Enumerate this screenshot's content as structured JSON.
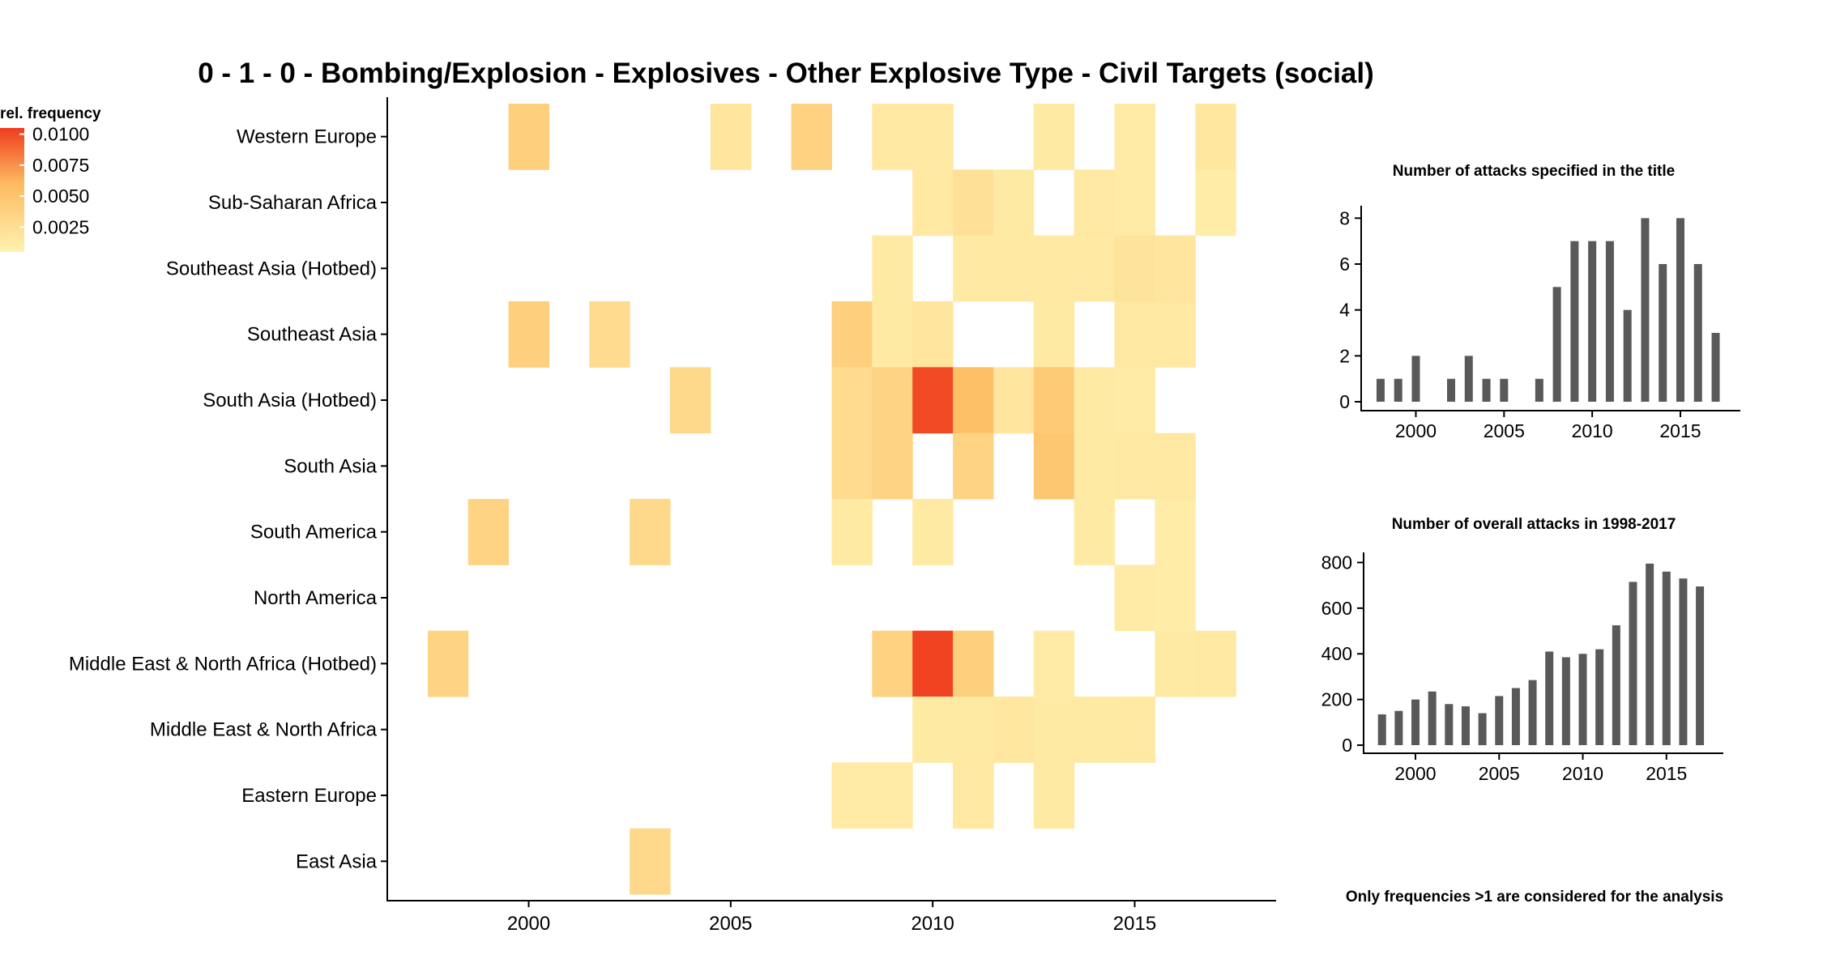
{
  "chart_data": [
    {
      "type": "heatmap",
      "title": "0 - 1 - 0 - Bombing/Explosion - Explosives - Other Explosive Type - Civil Targets (social)",
      "x_ticks": [
        "2000",
        "2005",
        "2010",
        "2015"
      ],
      "xlim": [
        1996.5,
        2018.5
      ],
      "regions": [
        "Western Europe",
        "Sub-Saharan Africa",
        "Southeast Asia (Hotbed)",
        "Southeast Asia",
        "South Asia (Hotbed)",
        "South Asia",
        "South America",
        "North America",
        "Middle East & North Africa (Hotbed)",
        "Middle East & North Africa",
        "Eastern Europe",
        "East Asia"
      ],
      "legend": {
        "title": "rel. frequency",
        "ticks": [
          "0.0100",
          "0.0075",
          "0.0050",
          "0.0025"
        ],
        "min": 0.0005,
        "max": 0.0105
      },
      "colors": {
        "low": "#fff2b0",
        "mid": "#fdbb60",
        "high": "#f03c1e"
      },
      "cells": [
        {
          "region": "Western Europe",
          "year": 2000,
          "value": 0.004
        },
        {
          "region": "Western Europe",
          "year": 2005,
          "value": 0.0018
        },
        {
          "region": "Western Europe",
          "year": 2007,
          "value": 0.0038
        },
        {
          "region": "Western Europe",
          "year": 2009,
          "value": 0.0015
        },
        {
          "region": "Western Europe",
          "year": 2010,
          "value": 0.0015
        },
        {
          "region": "Western Europe",
          "year": 2013,
          "value": 0.0013
        },
        {
          "region": "Western Europe",
          "year": 2015,
          "value": 0.0012
        },
        {
          "region": "Western Europe",
          "year": 2017,
          "value": 0.0016
        },
        {
          "region": "Sub-Saharan Africa",
          "year": 2010,
          "value": 0.0015
        },
        {
          "region": "Sub-Saharan Africa",
          "year": 2011,
          "value": 0.0022
        },
        {
          "region": "Sub-Saharan Africa",
          "year": 2012,
          "value": 0.0013
        },
        {
          "region": "Sub-Saharan Africa",
          "year": 2014,
          "value": 0.0015
        },
        {
          "region": "Sub-Saharan Africa",
          "year": 2015,
          "value": 0.0012
        },
        {
          "region": "Sub-Saharan Africa",
          "year": 2017,
          "value": 0.0011
        },
        {
          "region": "Southeast Asia (Hotbed)",
          "year": 2009,
          "value": 0.0013
        },
        {
          "region": "Southeast Asia (Hotbed)",
          "year": 2011,
          "value": 0.0014
        },
        {
          "region": "Southeast Asia (Hotbed)",
          "year": 2012,
          "value": 0.0014
        },
        {
          "region": "Southeast Asia (Hotbed)",
          "year": 2013,
          "value": 0.0014
        },
        {
          "region": "Southeast Asia (Hotbed)",
          "year": 2014,
          "value": 0.0014
        },
        {
          "region": "Southeast Asia (Hotbed)",
          "year": 2015,
          "value": 0.002
        },
        {
          "region": "Southeast Asia (Hotbed)",
          "year": 2016,
          "value": 0.0018
        },
        {
          "region": "Southeast Asia",
          "year": 2000,
          "value": 0.004
        },
        {
          "region": "Southeast Asia",
          "year": 2002,
          "value": 0.0028
        },
        {
          "region": "Southeast Asia",
          "year": 2008,
          "value": 0.004
        },
        {
          "region": "Southeast Asia",
          "year": 2009,
          "value": 0.0013
        },
        {
          "region": "Southeast Asia",
          "year": 2010,
          "value": 0.0018
        },
        {
          "region": "Southeast Asia",
          "year": 2013,
          "value": 0.0013
        },
        {
          "region": "Southeast Asia",
          "year": 2015,
          "value": 0.0015
        },
        {
          "region": "Southeast Asia",
          "year": 2016,
          "value": 0.0015
        },
        {
          "region": "South Asia (Hotbed)",
          "year": 2004,
          "value": 0.003
        },
        {
          "region": "South Asia (Hotbed)",
          "year": 2008,
          "value": 0.0028
        },
        {
          "region": "South Asia (Hotbed)",
          "year": 2009,
          "value": 0.0035
        },
        {
          "region": "South Asia (Hotbed)",
          "year": 2010,
          "value": 0.01
        },
        {
          "region": "South Asia (Hotbed)",
          "year": 2011,
          "value": 0.0055
        },
        {
          "region": "South Asia (Hotbed)",
          "year": 2012,
          "value": 0.0018
        },
        {
          "region": "South Asia (Hotbed)",
          "year": 2013,
          "value": 0.0045
        },
        {
          "region": "South Asia (Hotbed)",
          "year": 2014,
          "value": 0.0013
        },
        {
          "region": "South Asia (Hotbed)",
          "year": 2015,
          "value": 0.0012
        },
        {
          "region": "South Asia",
          "year": 2008,
          "value": 0.0028
        },
        {
          "region": "South Asia",
          "year": 2009,
          "value": 0.0035
        },
        {
          "region": "South Asia",
          "year": 2011,
          "value": 0.0035
        },
        {
          "region": "South Asia",
          "year": 2013,
          "value": 0.0048
        },
        {
          "region": "South Asia",
          "year": 2014,
          "value": 0.0013
        },
        {
          "region": "South Asia",
          "year": 2015,
          "value": 0.0015
        },
        {
          "region": "South Asia",
          "year": 2016,
          "value": 0.0015
        },
        {
          "region": "South America",
          "year": 1999,
          "value": 0.0035
        },
        {
          "region": "South America",
          "year": 2003,
          "value": 0.003
        },
        {
          "region": "South America",
          "year": 2008,
          "value": 0.0013
        },
        {
          "region": "South America",
          "year": 2010,
          "value": 0.0013
        },
        {
          "region": "South America",
          "year": 2014,
          "value": 0.0013
        },
        {
          "region": "South America",
          "year": 2016,
          "value": 0.0011
        },
        {
          "region": "North America",
          "year": 2015,
          "value": 0.0012
        },
        {
          "region": "North America",
          "year": 2016,
          "value": 0.0011
        },
        {
          "region": "Middle East & North Africa (Hotbed)",
          "year": 1998,
          "value": 0.0035
        },
        {
          "region": "Middle East & North Africa (Hotbed)",
          "year": 2009,
          "value": 0.0038
        },
        {
          "region": "Middle East & North Africa (Hotbed)",
          "year": 2010,
          "value": 0.0103
        },
        {
          "region": "Middle East & North Africa (Hotbed)",
          "year": 2011,
          "value": 0.004
        },
        {
          "region": "Middle East & North Africa (Hotbed)",
          "year": 2013,
          "value": 0.0012
        },
        {
          "region": "Middle East & North Africa (Hotbed)",
          "year": 2016,
          "value": 0.0013
        },
        {
          "region": "Middle East & North Africa (Hotbed)",
          "year": 2017,
          "value": 0.0015
        },
        {
          "region": "Middle East & North Africa",
          "year": 2010,
          "value": 0.0013
        },
        {
          "region": "Middle East & North Africa",
          "year": 2011,
          "value": 0.0013
        },
        {
          "region": "Middle East & North Africa",
          "year": 2012,
          "value": 0.0016
        },
        {
          "region": "Middle East & North Africa",
          "year": 2013,
          "value": 0.0013
        },
        {
          "region": "Middle East & North Africa",
          "year": 2014,
          "value": 0.0013
        },
        {
          "region": "Middle East & North Africa",
          "year": 2015,
          "value": 0.0014
        },
        {
          "region": "Eastern Europe",
          "year": 2008,
          "value": 0.0012
        },
        {
          "region": "Eastern Europe",
          "year": 2009,
          "value": 0.0012
        },
        {
          "region": "Eastern Europe",
          "year": 2011,
          "value": 0.0015
        },
        {
          "region": "Eastern Europe",
          "year": 2013,
          "value": 0.0013
        },
        {
          "region": "East Asia",
          "year": 2003,
          "value": 0.003
        }
      ]
    },
    {
      "type": "bar",
      "title": "Number of attacks specified in the title",
      "x": [
        1998,
        1999,
        2000,
        2001,
        2002,
        2003,
        2004,
        2005,
        2006,
        2007,
        2008,
        2009,
        2010,
        2011,
        2012,
        2013,
        2014,
        2015,
        2016,
        2017
      ],
      "values": [
        1,
        1,
        2,
        0,
        1,
        2,
        1,
        1,
        0,
        1,
        5,
        7,
        7,
        7,
        4,
        8,
        6,
        8,
        6,
        3
      ],
      "x_ticks": [
        "2000",
        "2005",
        "2010",
        "2015"
      ],
      "y_ticks": [
        "0",
        "2",
        "4",
        "6",
        "8"
      ],
      "xlim": [
        1996.9,
        2018.4
      ],
      "ylim": [
        0,
        8.4
      ],
      "bar_color": "#595959"
    },
    {
      "type": "bar",
      "title": "Number of overall attacks in 1998-2017",
      "x": [
        1998,
        1999,
        2000,
        2001,
        2002,
        2003,
        2004,
        2005,
        2006,
        2007,
        2008,
        2009,
        2010,
        2011,
        2012,
        2013,
        2014,
        2015,
        2016,
        2017
      ],
      "values": [
        135,
        150,
        200,
        235,
        180,
        170,
        140,
        215,
        250,
        285,
        410,
        385,
        400,
        420,
        525,
        715,
        795,
        760,
        730,
        695
      ],
      "x_ticks": [
        "2000",
        "2005",
        "2010",
        "2015"
      ],
      "y_ticks": [
        "0",
        "200",
        "400",
        "600",
        "800"
      ],
      "xlim": [
        1996.9,
        2018.4
      ],
      "ylim": [
        0,
        830
      ],
      "bar_color": "#595959"
    }
  ],
  "footnote": "Only frequencies >1 are considered for the analysis"
}
